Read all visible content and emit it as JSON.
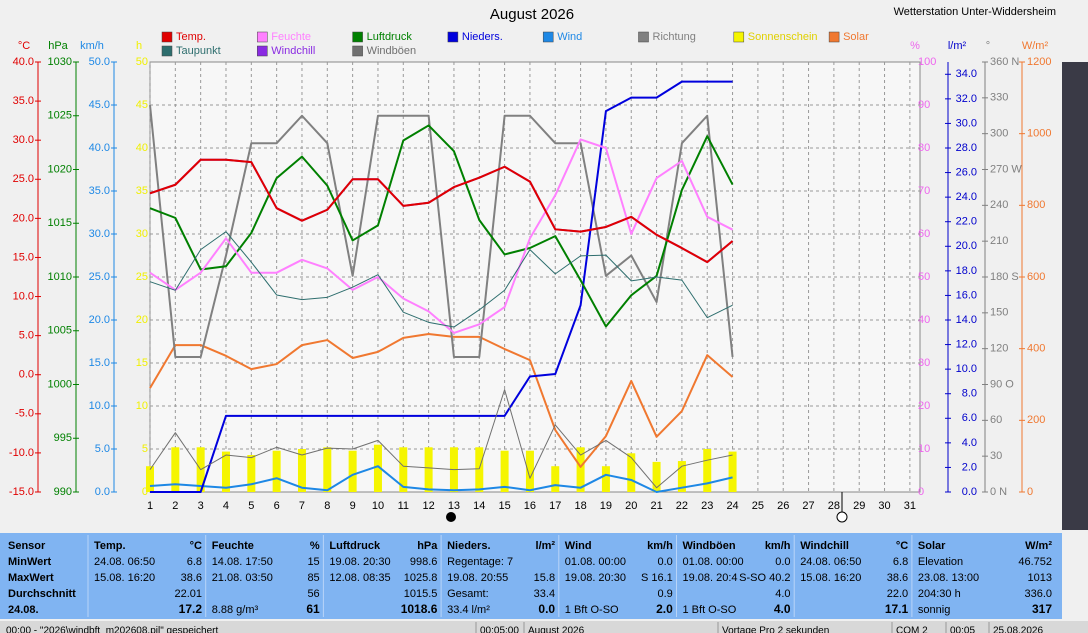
{
  "station": "Wetterstation Unter-Widdersheim",
  "chart_data": {
    "type": "line",
    "title": "August 2026",
    "x": [
      1,
      2,
      3,
      4,
      5,
      6,
      7,
      8,
      9,
      10,
      11,
      12,
      13,
      14,
      15,
      16,
      17,
      18,
      19,
      20,
      21,
      22,
      23,
      24
    ],
    "xlim": [
      1,
      31.4
    ],
    "xticks": [
      1,
      2,
      3,
      4,
      5,
      6,
      7,
      8,
      9,
      10,
      11,
      12,
      13,
      14,
      15,
      16,
      17,
      18,
      19,
      20,
      21,
      22,
      23,
      24,
      25,
      26,
      27,
      28,
      29,
      30,
      31
    ],
    "grid": true,
    "axes": [
      {
        "unit": "°C",
        "color": "#e00000",
        "lim": [
          -15,
          40
        ],
        "ticks": [
          {
            "value": -15,
            "label": "-15.0"
          },
          {
            "value": -10,
            "label": "-10.0"
          },
          {
            "value": -5,
            "label": "-5.0"
          },
          {
            "value": 0,
            "label": "0.0"
          },
          {
            "value": 5,
            "label": "5.0"
          },
          {
            "value": 10,
            "label": "10.0"
          },
          {
            "value": 15,
            "label": "15.0"
          },
          {
            "value": 20,
            "label": "20.0"
          },
          {
            "value": 25,
            "label": "25.0"
          },
          {
            "value": 30,
            "label": "30.0"
          },
          {
            "value": 35,
            "label": "35.0"
          },
          {
            "value": 40,
            "label": "40.0"
          }
        ]
      },
      {
        "unit": "hPa",
        "color": "#008000",
        "lim": [
          990,
          1030
        ],
        "ticks": [
          990,
          995,
          1000,
          1005,
          1010,
          1015,
          1020,
          1025,
          1030
        ]
      },
      {
        "unit": "km/h",
        "color": "#1e88e5",
        "lim": [
          0,
          50
        ],
        "ticks": [
          {
            "value": 0,
            "label": "0.0"
          },
          {
            "value": 5,
            "label": "5.0"
          },
          {
            "value": 10,
            "label": "10.0"
          },
          {
            "value": 15,
            "label": "15.0"
          },
          {
            "value": 20,
            "label": "20.0"
          },
          {
            "value": 25,
            "label": "25.0"
          },
          {
            "value": 30,
            "label": "30.0"
          },
          {
            "value": 35,
            "label": "35.0"
          },
          {
            "value": 40,
            "label": "40.0"
          },
          {
            "value": 45,
            "label": "45.0"
          },
          {
            "value": 50,
            "label": "50.0"
          }
        ]
      },
      {
        "unit": "h",
        "color": "#f0f000",
        "lim": [
          0,
          50
        ],
        "ticks": [
          0,
          5,
          10,
          15,
          20,
          25,
          30,
          35,
          40,
          45,
          50
        ]
      },
      {
        "unit": "%",
        "color": "#ee66ee",
        "lim": [
          0,
          100
        ],
        "ticks": [
          0,
          10,
          20,
          30,
          40,
          50,
          60,
          70,
          80,
          90,
          100
        ],
        "grid": true
      },
      {
        "unit": "l/m²",
        "color": "#0000cc",
        "lim": [
          0,
          35
        ],
        "ticks": [
          {
            "value": 0,
            "label": "0.0"
          },
          {
            "value": 2,
            "label": "2.0"
          },
          {
            "value": 4,
            "label": "4.0"
          },
          {
            "value": 6,
            "label": "6.0"
          },
          {
            "value": 8,
            "label": "8.0"
          },
          {
            "value": 10,
            "label": "10.0"
          },
          {
            "value": 12,
            "label": "12.0"
          },
          {
            "value": 14,
            "label": "14.0"
          },
          {
            "value": 16,
            "label": "16.0"
          },
          {
            "value": 18,
            "label": "18.0"
          },
          {
            "value": 20,
            "label": "20.0"
          },
          {
            "value": 22,
            "label": "22.0"
          },
          {
            "value": 24,
            "label": "24.0"
          },
          {
            "value": 26,
            "label": "26.0"
          },
          {
            "value": 28,
            "label": "28.0"
          },
          {
            "value": 30,
            "label": "30.0"
          },
          {
            "value": 32,
            "label": "32.0"
          },
          {
            "value": 34,
            "label": "34.0"
          }
        ]
      },
      {
        "unit": "°",
        "color": "#808080",
        "lim": [
          0,
          360
        ],
        "ticks": [
          {
            "value": 0,
            "label": "0 N"
          },
          30,
          60,
          {
            "value": 90,
            "label": "90 O"
          },
          120,
          150,
          {
            "value": 180,
            "label": "180 S"
          },
          210,
          240,
          {
            "value": 270,
            "label": "270 W"
          },
          300,
          330,
          {
            "value": 360,
            "label": "360 N"
          }
        ]
      },
      {
        "unit": "W/m²",
        "color": "#f07830",
        "lim": [
          0,
          1200
        ],
        "ticks": [
          0,
          200,
          400,
          600,
          800,
          1000,
          1200
        ]
      }
    ],
    "series": [
      {
        "name": "Temp.",
        "color": "#e00000",
        "axis": "°C",
        "width": 2,
        "values": [
          23.2,
          24.3,
          27.5,
          27.5,
          27.2,
          21.3,
          19.7,
          21.1,
          25.0,
          25.0,
          21.6,
          22.0,
          24.0,
          25.2,
          26.6,
          24.7,
          18.6,
          18.3,
          18.9,
          20.2,
          17.9,
          16.2,
          14.4,
          17.1
        ]
      },
      {
        "name": "Taupunkt",
        "color": "#2e6e6e",
        "axis": "°C",
        "width": 1,
        "values": [
          11.9,
          10.8,
          16.0,
          18.3,
          14.4,
          10.2,
          9.6,
          9.9,
          11.2,
          12.8,
          8.0,
          6.7,
          6.1,
          8.3,
          10.8,
          16.0,
          12.9,
          15.2,
          15.3,
          12.0,
          12.5,
          12.1,
          7.3,
          8.9
        ]
      },
      {
        "name": "Feuchte",
        "color": "#ff80ff",
        "axis": "%",
        "width": 2,
        "values": [
          51,
          47,
          51,
          59,
          51,
          51,
          54,
          52,
          47,
          50,
          45,
          42,
          37,
          39,
          43,
          59,
          69,
          82,
          80,
          60,
          73,
          77,
          64,
          61
        ]
      },
      {
        "name": "Windchill",
        "color": "#8a2be2",
        "axis": "°C",
        "width": 2,
        "values": [
          23.2,
          24.3,
          27.5,
          27.5,
          27.2,
          21.3,
          19.7,
          21.1,
          25.0,
          25.0,
          21.6,
          22.0,
          24.0,
          25.2,
          26.6,
          24.7,
          18.6,
          18.3,
          18.9,
          20.2,
          17.9,
          16.2,
          14.4,
          17.1
        ]
      },
      {
        "name": "Luftdruck",
        "color": "#008000",
        "axis": "hPa",
        "width": 2,
        "values": [
          1016.4,
          1015.5,
          1010.7,
          1011.0,
          1014.1,
          1019.2,
          1021.2,
          1018.5,
          1013.4,
          1014.8,
          1022.7,
          1024.1,
          1021.7,
          1015.3,
          1012.1,
          1012.7,
          1013.8,
          1009.7,
          1005.4,
          1008.3,
          1010.1,
          1018.1,
          1023.1,
          1018.6
        ]
      },
      {
        "name": "Windböen",
        "color": "#707070",
        "axis": "km/h",
        "width": 1,
        "values": [
          2.6,
          6.9,
          2.6,
          4.3,
          4.0,
          5.2,
          4.3,
          5.1,
          5.0,
          6.0,
          3.0,
          2.8,
          2.6,
          2.7,
          11.9,
          1.6,
          7.8,
          4.3,
          6.0,
          4.0,
          0.5,
          3.0,
          3.7,
          4.3
        ]
      },
      {
        "name": "Nieders.",
        "color": "#0000dd",
        "axis": "l/m²",
        "width": 2,
        "values": [
          0,
          0,
          0,
          6.2,
          6.2,
          6.2,
          6.2,
          6.2,
          6.2,
          6.2,
          6.2,
          6.2,
          6.2,
          6.2,
          6.2,
          9.4,
          9.6,
          15.2,
          31.0,
          32.1,
          32.1,
          33.4,
          33.4,
          33.4
        ]
      },
      {
        "name": "Wind",
        "color": "#1e88e5",
        "axis": "km/h",
        "width": 2,
        "values": [
          0.7,
          0.9,
          0.7,
          0.5,
          0.9,
          1.6,
          0.5,
          0.2,
          2.0,
          3.0,
          0.6,
          0.3,
          0.2,
          0.3,
          0.6,
          0.2,
          0.8,
          0.5,
          2.0,
          1.4,
          0,
          0.5,
          1.0,
          1.7
        ]
      },
      {
        "name": "Richtung",
        "color": "#808080",
        "axis": "°",
        "width": 2,
        "values": [
          324,
          113,
          113,
          198,
          292,
          292,
          315,
          292,
          181,
          315,
          315,
          315,
          113,
          113,
          315,
          315,
          292,
          292,
          181,
          198,
          159,
          292,
          315,
          113
        ]
      },
      {
        "name": "Sonnenschein",
        "color": "#f5f500",
        "axis": "h",
        "kind": "bar",
        "values": [
          3.0,
          5.2,
          5.2,
          4.7,
          4.3,
          4.8,
          5.0,
          5.2,
          4.8,
          5.5,
          5.2,
          5.2,
          5.2,
          5.2,
          4.8,
          4.8,
          3.0,
          5.2,
          3.0,
          4.5,
          3.5,
          3.6,
          5.0,
          4.7
        ]
      },
      {
        "name": "Solar",
        "color": "#f07830",
        "axis": "W/m²",
        "width": 2,
        "values": [
          290,
          410,
          410,
          380,
          343,
          357,
          410,
          424,
          374,
          391,
          430,
          441,
          433,
          433,
          399,
          368,
          173,
          70,
          156,
          310,
          154,
          226,
          382,
          321
        ]
      }
    ]
  },
  "summary_table": {
    "row_labels": [
      "Sensor",
      "MinWert",
      "MaxWert",
      "Durchschnitt",
      "24.08."
    ],
    "columns": [
      {
        "title": "Temp.",
        "unit": "°C",
        "cells": [
          {
            "label": "24.08.  06:50",
            "value": "6.8"
          },
          {
            "label": "15.08.  16:20",
            "value": "38.6"
          },
          {
            "value": "22.01"
          },
          {
            "value": "17.2"
          }
        ]
      },
      {
        "title": "Feuchte",
        "unit": "%",
        "cells": [
          {
            "label": "14.08.  17:50",
            "value": "15"
          },
          {
            "label": "21.08.  03:50",
            "value": "85"
          },
          {
            "value": "56"
          },
          {
            "label": "8.88 g/m³",
            "value": "61"
          }
        ]
      },
      {
        "title": "Luftdruck",
        "unit": "hPa",
        "cells": [
          {
            "label": "19.08.  20:30",
            "value": "998.6"
          },
          {
            "label": "12.08.  08:35",
            "value": "1025.8"
          },
          {
            "value": "1015.5"
          },
          {
            "value": "1018.6"
          }
        ]
      },
      {
        "title": "Nieders.",
        "unit": "l/m²",
        "cells": [
          {
            "label": "Regentage: 7"
          },
          {
            "label": "19.08.  20:55",
            "value": "15.8"
          },
          {
            "label": "Gesamt:",
            "value": "33.4"
          },
          {
            "label": "33.4 l/m²",
            "value": "0.0"
          }
        ]
      },
      {
        "title": "Wind",
        "unit": "km/h",
        "cells": [
          {
            "label": "01.08.  00:00",
            "value": "0.0"
          },
          {
            "label": "19.08.  20:30",
            "value": "S 16.1"
          },
          {
            "value": "0.9"
          },
          {
            "label": "1 Bft O-SO",
            "value": "2.0"
          }
        ]
      },
      {
        "title": "Windböen",
        "unit": "km/h",
        "cells": [
          {
            "label": "01.08.  00:00",
            "value": "0.0"
          },
          {
            "label": "19.08.  20:4",
            "value": "S-SO 40.2"
          },
          {
            "value": "4.0"
          },
          {
            "label": "1 Bft O-SO",
            "value": "4.0"
          }
        ]
      },
      {
        "title": "Windchill",
        "unit": "°C",
        "cells": [
          {
            "label": "24.08.  06:50",
            "value": "6.8"
          },
          {
            "label": "15.08.  16:20",
            "value": "38.6"
          },
          {
            "value": "22.0"
          },
          {
            "value": "17.1"
          }
        ]
      },
      {
        "title": "Solar",
        "unit": "W/m²",
        "cells": [
          {
            "label": "Elevation",
            "value": "46.752"
          },
          {
            "label": "23.08.  13:00",
            "value": "1013"
          },
          {
            "label": "204:30 h",
            "value": "336.0"
          },
          {
            "label": "sonnig",
            "value": "317"
          }
        ]
      }
    ]
  },
  "status_bar": [
    "00:00 - \"2026\\windbft_m202608.pil\" gespeichert",
    "00:05:00",
    "August 2026",
    "Vortage Pro 2 sekunden",
    "COM 2",
    "00:05",
    "25.08.2026"
  ]
}
